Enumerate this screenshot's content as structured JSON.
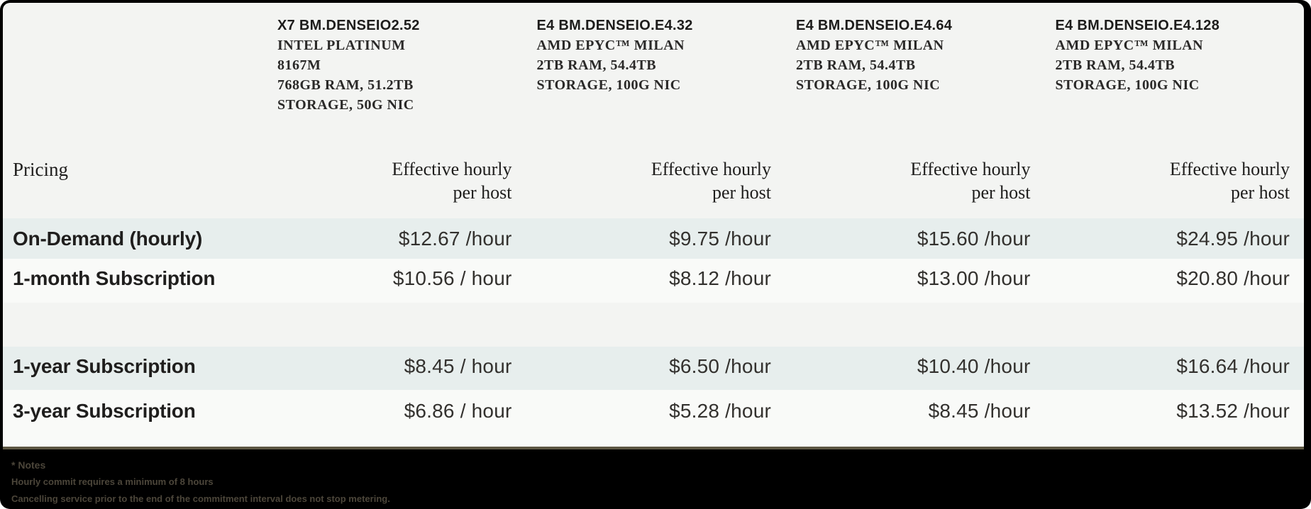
{
  "table": {
    "pricing_label": "Pricing",
    "effective_line1": "Effective hourly",
    "effective_line2": "per host",
    "columns": [
      {
        "name": "X7 BM.DENSEIO2.52",
        "specs": [
          "INTEL PLATINUM",
          "8167M",
          "768GB RAM, 51.2TB",
          "STORAGE, 50G NIC"
        ]
      },
      {
        "name": "E4 BM.DENSEIO.E4.32",
        "specs": [
          "AMD EPYC™ MILAN",
          "2TB RAM, 54.4TB",
          "STORAGE, 100G NIC"
        ]
      },
      {
        "name": "E4 BM.DENSEIO.E4.64",
        "specs": [
          "AMD EPYC™ MILAN",
          "2TB RAM, 54.4TB",
          "STORAGE, 100G NIC"
        ]
      },
      {
        "name": "E4 BM.DENSEIO.E4.128",
        "specs": [
          "AMD EPYC™ MILAN",
          "2TB RAM, 54.4TB",
          "STORAGE, 100G NIC"
        ]
      }
    ],
    "rows": [
      {
        "label": "On-Demand (hourly)",
        "values": [
          "$12.67 /hour",
          "$9.75 /hour",
          "$15.60 /hour",
          "$24.95 /hour"
        ]
      },
      {
        "label": "1-month Subscription",
        "values": [
          "$10.56 / hour",
          "$8.12 /hour",
          "$13.00 /hour",
          "$20.80 /hour"
        ]
      },
      {
        "label": "1-year Subscription",
        "values": [
          "$8.45 / hour",
          "$6.50 /hour",
          "$10.40 /hour",
          "$16.64 /hour"
        ]
      },
      {
        "label": "3-year Subscription",
        "values": [
          "$6.86 / hour",
          "$5.28 /hour",
          "$8.45 /hour",
          "$13.52 /hour"
        ]
      }
    ]
  },
  "notes": {
    "title": "* Notes",
    "line1": "Hourly commit requires a minimum of 8 hours",
    "line2": "Cancelling service prior to the end of the commitment interval does not stop metering."
  },
  "colors": {
    "shaded_row": "#e7eeed",
    "white_row": "#f9faf8",
    "card_background": "#f3f4f2",
    "frame_background": "#000000",
    "text": "#1f1e1d"
  }
}
